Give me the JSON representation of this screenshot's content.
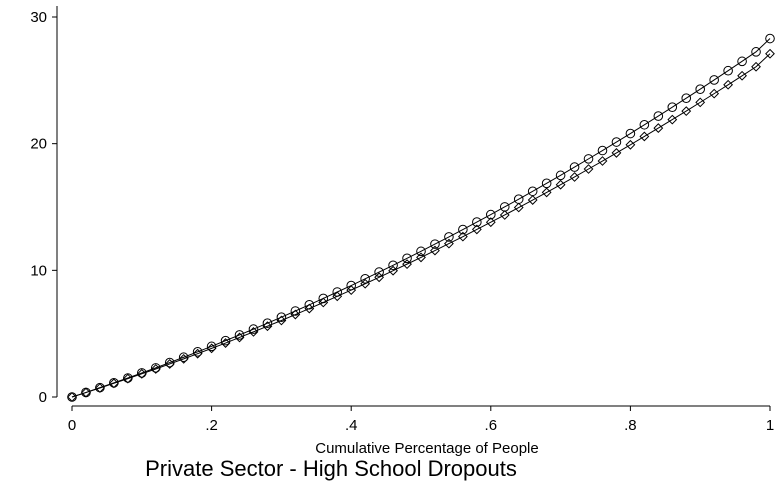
{
  "chart_data": {
    "type": "line",
    "title": "Private Sector - High School Dropouts",
    "xlabel": "Cumulative Percentage of People",
    "ylabel": "",
    "xlim": [
      0,
      1
    ],
    "ylim": [
      0,
      30
    ],
    "x_ticks": [
      "0",
      ".2",
      ".4",
      ".6",
      ".8",
      "1"
    ],
    "y_ticks": [
      "0",
      "10",
      "20",
      "30"
    ],
    "grid": false,
    "legend": "none",
    "x": [
      0,
      0.02,
      0.04,
      0.06,
      0.08,
      0.1,
      0.12,
      0.14,
      0.16,
      0.18,
      0.2,
      0.22,
      0.24,
      0.26,
      0.28,
      0.3,
      0.32,
      0.34,
      0.36,
      0.38,
      0.4,
      0.42,
      0.44,
      0.46,
      0.48,
      0.5,
      0.52,
      0.54,
      0.56,
      0.58,
      0.6,
      0.62,
      0.64,
      0.66,
      0.68,
      0.7,
      0.72,
      0.74,
      0.76,
      0.78,
      0.8,
      0.82,
      0.84,
      0.86,
      0.88,
      0.9,
      0.92,
      0.94,
      0.96,
      0.98,
      1.0
    ],
    "series": [
      {
        "marker": "circle",
        "color": "#000000",
        "values": [
          0,
          0.36,
          0.74,
          1.12,
          1.5,
          1.9,
          2.3,
          2.72,
          3.14,
          3.57,
          4.0,
          4.45,
          4.9,
          5.36,
          5.83,
          6.3,
          6.79,
          7.28,
          7.78,
          8.29,
          8.8,
          9.33,
          9.86,
          10.4,
          10.95,
          11.5,
          12.07,
          12.64,
          13.22,
          13.81,
          14.4,
          15.01,
          15.62,
          16.24,
          16.87,
          17.5,
          18.15,
          18.8,
          19.46,
          20.13,
          20.8,
          21.49,
          22.18,
          22.88,
          23.59,
          24.3,
          25.03,
          25.76,
          26.5,
          27.25,
          28.3
        ]
      },
      {
        "marker": "diamond",
        "color": "#000000",
        "values": [
          0,
          0.35,
          0.71,
          1.08,
          1.45,
          1.83,
          2.21,
          2.61,
          3.01,
          3.42,
          3.84,
          4.26,
          4.7,
          5.14,
          5.59,
          6.04,
          6.51,
          6.98,
          7.46,
          7.95,
          8.44,
          8.94,
          9.45,
          9.97,
          10.49,
          11.02,
          11.56,
          12.11,
          12.66,
          13.23,
          13.8,
          14.37,
          14.96,
          15.55,
          16.15,
          16.76,
          17.37,
          18.0,
          18.63,
          19.27,
          19.91,
          20.57,
          21.23,
          21.9,
          22.57,
          23.26,
          23.95,
          24.65,
          25.36,
          26.07,
          27.1
        ]
      }
    ]
  }
}
